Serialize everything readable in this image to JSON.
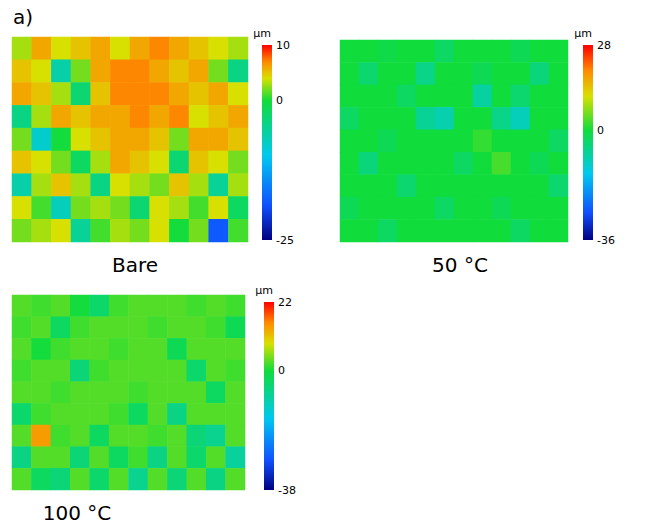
{
  "figure_label": "a)",
  "chart_data": [
    {
      "type": "heatmap",
      "title": "Bare",
      "tick_labels": false,
      "colorbar": {
        "label": "µm",
        "range": [
          -25,
          10
        ],
        "ticks": [
          -25,
          0,
          10
        ]
      },
      "cells": [
        [
          3,
          6,
          4,
          5,
          6,
          4,
          6,
          7,
          6,
          5,
          4,
          3
        ],
        [
          5,
          4,
          -6,
          2,
          6,
          7,
          7,
          6,
          5,
          6,
          2,
          -4
        ],
        [
          6,
          5,
          3,
          -3,
          5,
          7,
          7,
          7,
          6,
          5,
          6,
          4
        ],
        [
          -4,
          3,
          6,
          5,
          6,
          6,
          7,
          6,
          7,
          4,
          5,
          6
        ],
        [
          2,
          -8,
          0,
          4,
          5,
          6,
          6,
          5,
          2,
          6,
          6,
          5
        ],
        [
          5,
          4,
          2,
          -2,
          3,
          6,
          5,
          4,
          -3,
          5,
          4,
          2
        ],
        [
          -6,
          3,
          5,
          3,
          -4,
          4,
          3,
          2,
          5,
          3,
          -5,
          3
        ],
        [
          4,
          1,
          -7,
          2,
          3,
          2,
          -3,
          4,
          3,
          1,
          4,
          -2
        ],
        [
          2,
          3,
          4,
          -5,
          1,
          3,
          2,
          4,
          0,
          2,
          -18,
          1
        ]
      ]
    },
    {
      "type": "heatmap",
      "title": "50 °C",
      "tick_labels": false,
      "colorbar": {
        "label": "µm",
        "range": [
          -36,
          28
        ],
        "ticks": [
          -36,
          0,
          28
        ]
      },
      "cells": [
        [
          0,
          0,
          -1,
          0,
          0,
          -3,
          0,
          0,
          0,
          -2,
          0,
          0
        ],
        [
          0,
          -4,
          0,
          0,
          -6,
          0,
          0,
          -2,
          0,
          0,
          -5,
          0
        ],
        [
          0,
          0,
          0,
          -3,
          0,
          0,
          0,
          -8,
          0,
          -4,
          0,
          0
        ],
        [
          -3,
          0,
          0,
          0,
          -7,
          -9,
          0,
          0,
          -6,
          -10,
          0,
          0
        ],
        [
          0,
          0,
          -2,
          0,
          0,
          0,
          0,
          2,
          0,
          0,
          0,
          -3
        ],
        [
          0,
          -5,
          0,
          0,
          0,
          0,
          -3,
          0,
          3,
          0,
          -2,
          0
        ],
        [
          0,
          0,
          0,
          -4,
          0,
          0,
          0,
          0,
          0,
          0,
          0,
          -4
        ],
        [
          -2,
          0,
          0,
          0,
          0,
          -3,
          0,
          0,
          -2,
          0,
          0,
          0
        ],
        [
          0,
          0,
          -3,
          0,
          0,
          0,
          0,
          0,
          0,
          -3,
          0,
          0
        ]
      ]
    },
    {
      "type": "heatmap",
      "title": "100 °C",
      "tick_labels": false,
      "colorbar": {
        "label": "µm",
        "range": [
          -38,
          22
        ],
        "ticks": [
          -38,
          0,
          22
        ]
      },
      "cells": [
        [
          3,
          2,
          3,
          0,
          -4,
          2,
          3,
          3,
          3,
          2,
          3,
          2
        ],
        [
          2,
          3,
          -3,
          2,
          3,
          3,
          3,
          2,
          3,
          3,
          2,
          -2
        ],
        [
          3,
          0,
          2,
          3,
          3,
          2,
          3,
          3,
          -2,
          3,
          3,
          3
        ],
        [
          2,
          3,
          3,
          -5,
          2,
          3,
          3,
          3,
          3,
          -4,
          3,
          2
        ],
        [
          3,
          3,
          2,
          3,
          3,
          3,
          2,
          3,
          3,
          3,
          -3,
          3
        ],
        [
          -4,
          2,
          3,
          3,
          3,
          2,
          -3,
          3,
          -6,
          3,
          3,
          3
        ],
        [
          3,
          14,
          2,
          3,
          -3,
          3,
          3,
          2,
          3,
          -5,
          -7,
          3
        ],
        [
          -6,
          3,
          3,
          -5,
          3,
          -3,
          2,
          -6,
          3,
          -4,
          3,
          -8
        ],
        [
          3,
          -3,
          -5,
          3,
          -4,
          3,
          -7,
          3,
          -5,
          3,
          -6,
          3
        ]
      ]
    }
  ]
}
